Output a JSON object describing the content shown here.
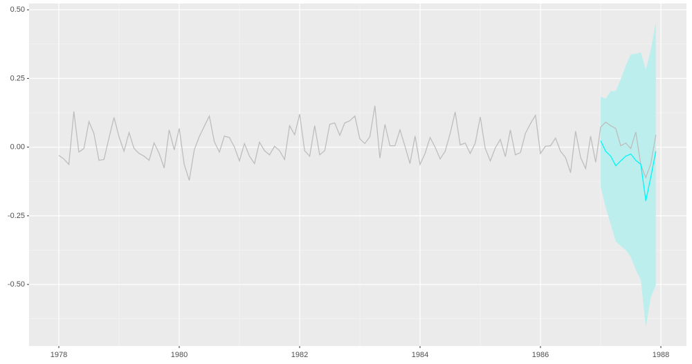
{
  "chart_data": {
    "type": "line",
    "xlim": [
      1977.506,
      1988.425
    ],
    "ylim": [
      -0.724,
      0.523
    ],
    "xticks": [
      1978,
      1980,
      1982,
      1984,
      1986,
      1988
    ],
    "yticks": [
      {
        "value": 0.5,
        "label": "0.50"
      },
      {
        "value": 0.25,
        "label": "0.25"
      },
      {
        "value": 0,
        "label": "0.00"
      },
      {
        "value": -0.25,
        "label": "-0.25"
      },
      {
        "value": -0.5,
        "label": "-0.50"
      }
    ],
    "grid": true,
    "series": [
      {
        "color": "#bdbdbd",
        "x": [
          1978,
          1978.083,
          1978.167,
          1978.25,
          1978.333,
          1978.417,
          1978.5,
          1978.583,
          1978.667,
          1978.75,
          1978.833,
          1978.917,
          1979,
          1979.083,
          1979.167,
          1979.25,
          1979.333,
          1979.417,
          1979.5,
          1979.583,
          1979.667,
          1979.75,
          1979.833,
          1979.917,
          1980,
          1980.083,
          1980.167,
          1980.25,
          1980.333,
          1980.417,
          1980.5,
          1980.583,
          1980.667,
          1980.75,
          1980.833,
          1980.917,
          1981,
          1981.083,
          1981.167,
          1981.25,
          1981.333,
          1981.417,
          1981.5,
          1981.583,
          1981.667,
          1981.75,
          1981.833,
          1981.917,
          1982,
          1982.083,
          1982.167,
          1982.25,
          1982.333,
          1982.417,
          1982.5,
          1982.583,
          1982.667,
          1982.75,
          1982.833,
          1982.917,
          1983,
          1983.083,
          1983.167,
          1983.25,
          1983.333,
          1983.417,
          1983.5,
          1983.583,
          1983.667,
          1983.75,
          1983.833,
          1983.917,
          1984,
          1984.083,
          1984.167,
          1984.25,
          1984.333,
          1984.417,
          1984.5,
          1984.583,
          1984.667,
          1984.75,
          1984.833,
          1984.917,
          1985,
          1985.083,
          1985.167,
          1985.25,
          1985.333,
          1985.417,
          1985.5,
          1985.583,
          1985.667,
          1985.75,
          1985.833,
          1985.917,
          1986,
          1986.083,
          1986.167,
          1986.25,
          1986.333,
          1986.417,
          1986.5,
          1986.583,
          1986.667,
          1986.75,
          1986.833,
          1986.917,
          1987,
          1987.083,
          1987.167,
          1987.25,
          1987.333,
          1987.417,
          1987.5,
          1987.583,
          1987.667,
          1987.75,
          1987.833,
          1987.917
        ],
        "values": [
          -0.03,
          -0.043,
          -0.063,
          0.13,
          -0.018,
          -0.005,
          0.093,
          0.05,
          -0.048,
          -0.045,
          0.033,
          0.108,
          0.038,
          -0.015,
          0.053,
          -0.005,
          -0.023,
          -0.033,
          -0.048,
          0.015,
          -0.023,
          -0.076,
          0.063,
          -0.01,
          0.068,
          -0.063,
          -0.121,
          -0.01,
          0.038,
          0.076,
          0.113,
          0.02,
          -0.018,
          0.04,
          0.035,
          0,
          -0.05,
          0.013,
          -0.033,
          -0.06,
          0.018,
          -0.013,
          -0.028,
          0.003,
          -0.013,
          -0.045,
          0.078,
          0.045,
          0.12,
          -0.013,
          -0.033,
          0.078,
          -0.028,
          -0.013,
          0.083,
          0.088,
          0.043,
          0.088,
          0.096,
          0.113,
          0.03,
          0.013,
          0.038,
          0.151,
          -0.04,
          0.083,
          0.005,
          0.005,
          0.063,
          0.003,
          -0.06,
          0.04,
          -0.063,
          -0.023,
          0.035,
          0,
          -0.043,
          -0.015,
          0.05,
          0.128,
          0.008,
          0.015,
          -0.023,
          0.015,
          0.11,
          -0.005,
          -0.05,
          -0.003,
          0.028,
          -0.035,
          0.063,
          -0.028,
          -0.02,
          0.05,
          0.085,
          0.116,
          -0.023,
          0.003,
          0.005,
          0.033,
          -0.015,
          -0.038,
          -0.093,
          0.058,
          -0.038,
          -0.078,
          0.04,
          -0.055,
          0.073,
          0.091,
          0.078,
          0.068,
          0.005,
          0.015,
          -0.005,
          0.055,
          -0.065,
          -0.111,
          -0.06,
          0.045
        ]
      },
      {
        "color": "#00f5f5",
        "fill": "#bdeeee",
        "x": [
          1987,
          1987.083,
          1987.167,
          1987.25,
          1987.333,
          1987.417,
          1987.5,
          1987.583,
          1987.667,
          1987.75,
          1987.833,
          1987.917
        ],
        "values": [
          0.023,
          -0.015,
          -0.033,
          -0.068,
          -0.05,
          -0.033,
          -0.025,
          -0.048,
          -0.063,
          -0.196,
          -0.108,
          -0.015
        ],
        "upper": [
          0.184,
          0.176,
          0.204,
          0.204,
          0.247,
          0.297,
          0.338,
          0.34,
          0.345,
          0.282,
          0.355,
          0.456
        ],
        "lower": [
          -0.144,
          -0.219,
          -0.282,
          -0.343,
          -0.36,
          -0.375,
          -0.4,
          -0.446,
          -0.484,
          -0.657,
          -0.547,
          -0.501
        ]
      }
    ]
  }
}
